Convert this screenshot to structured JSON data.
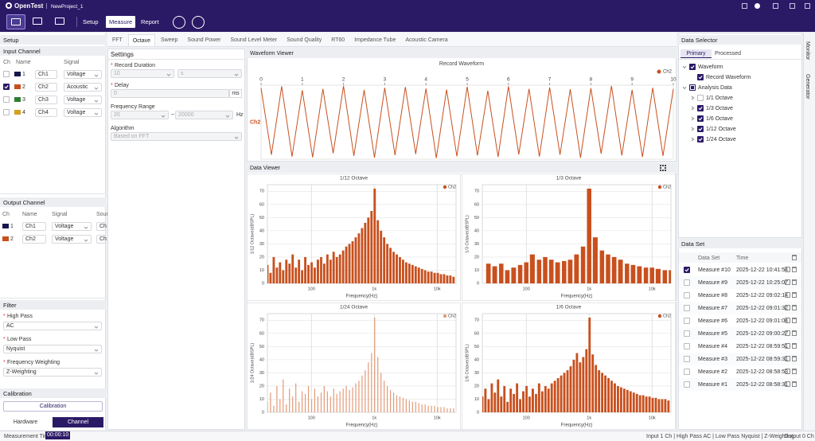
{
  "app": {
    "logo": "OpenTest",
    "project": "NewProject_1",
    "modes": [
      "Setup",
      "Measure",
      "Report"
    ],
    "active_mode": 1
  },
  "setup": {
    "title": "Setup",
    "input": {
      "title": "Input Channel",
      "columns": [
        "Ch",
        "Name",
        "Signal"
      ],
      "rows": [
        {
          "ch": "1",
          "color": "#17154f",
          "name": "Ch1",
          "signal": "Voltage",
          "checked": false
        },
        {
          "ch": "2",
          "color": "#c8501e",
          "name": "Ch2",
          "signal": "Acoustic",
          "checked": true
        },
        {
          "ch": "3",
          "color": "#2f7d32",
          "name": "Ch3",
          "signal": "Voltage",
          "checked": false
        },
        {
          "ch": "4",
          "color": "#d4a020",
          "name": "Ch4",
          "signal": "Voltage",
          "checked": false
        }
      ]
    },
    "output": {
      "title": "Output Channel",
      "columns": [
        "Ch",
        "Name",
        "Signal",
        "Sour"
      ],
      "rows": [
        {
          "ch": "1",
          "color": "#17154f",
          "name": "Ch1",
          "signal": "Voltage",
          "source": "Ch"
        },
        {
          "ch": "2",
          "color": "#c8501e",
          "name": "Ch2",
          "signal": "Voltage",
          "source": "Ch"
        }
      ]
    },
    "filter": {
      "title": "Filter",
      "fields": [
        {
          "required": "*",
          "label": "High Pass",
          "value": "AC"
        },
        {
          "required": "*",
          "label": "Low Pass",
          "value": "Nyquist"
        },
        {
          "required": "*",
          "label": "Frequency Weighting",
          "value": "Z-Weighting"
        }
      ]
    },
    "calibration": {
      "title": "Calibration",
      "button": "Calibration"
    },
    "tabs": [
      "Hardware",
      "Channel"
    ],
    "active_tab": 1
  },
  "analysis_tabs": {
    "items": [
      "FFT",
      "Octave",
      "Sweep",
      "Sound Power",
      "Sound Level Meter",
      "Sound Quality",
      "RT60",
      "Impedance Tube",
      "Acoustic Camera"
    ],
    "active": 1
  },
  "settings": {
    "title": "Settings",
    "record_duration": {
      "required": "*",
      "label": "Record Duration",
      "value": "10",
      "unit": "s"
    },
    "delay": {
      "required": "*",
      "label": "Delay",
      "value": "0",
      "unit": "ms"
    },
    "frequency_range": {
      "label": "Frequency Range",
      "from": "20",
      "separator": "~",
      "to": "20000",
      "unit": "Hz"
    },
    "algorithm": {
      "label": "Algorithm",
      "value": "Based on FFT"
    }
  },
  "waveform_viewer": {
    "title": "Waveform Viewer"
  },
  "data_viewer": {
    "title": "Data Viewer"
  },
  "data_selector": {
    "title": "Data Selector",
    "tabs": [
      "Primary",
      "Processed"
    ],
    "active_tab": 0,
    "tree": [
      {
        "label": "Waveform",
        "level": 0,
        "checked": true
      },
      {
        "label": "Record Waveform",
        "level": 1,
        "checked": true
      },
      {
        "label": "Analysis Data",
        "level": 0,
        "checked": "partial"
      },
      {
        "label": "1/1 Octave",
        "level": 1,
        "checked": false
      },
      {
        "label": "1/3 Octave",
        "level": 1,
        "checked": true
      },
      {
        "label": "1/6 Octave",
        "level": 1,
        "checked": true
      },
      {
        "label": "1/12 Octave",
        "level": 1,
        "checked": true
      },
      {
        "label": "1/24 Octave",
        "level": 1,
        "checked": true
      }
    ]
  },
  "data_set": {
    "title": "Data Set",
    "columns": [
      "Data Set",
      "Time"
    ],
    "rows": [
      {
        "name": "Measure #10",
        "time": "2025-12-22 10:41:54",
        "checked": true
      },
      {
        "name": "Measure #9",
        "time": "2025-12-22 10:25:07",
        "checked": false
      },
      {
        "name": "Measure #8",
        "time": "2025-12-22 09:02:14",
        "checked": false
      },
      {
        "name": "Measure #7",
        "time": "2025-12-22 09:01:32",
        "checked": false
      },
      {
        "name": "Measure #6",
        "time": "2025-12-22 09:01:04",
        "checked": false
      },
      {
        "name": "Measure #5",
        "time": "2025-12-22 09:00:27",
        "checked": false
      },
      {
        "name": "Measure #4",
        "time": "2025-12-22 08:59:51",
        "checked": false
      },
      {
        "name": "Measure #3",
        "time": "2025-12-22 08:59:31",
        "checked": false
      },
      {
        "name": "Measure #2",
        "time": "2025-12-22 08:58:53",
        "checked": false
      },
      {
        "name": "Measure #1",
        "time": "2025-12-22 08:58:31",
        "checked": false
      }
    ]
  },
  "side_tabs": [
    "Monitor",
    "Generator"
  ],
  "status": {
    "label": "Measurement Time",
    "time": "00:00:10",
    "items": [
      "Input  1 Ch | High Pass  AC | Low Pass  Nyquist | Z-Weighting",
      "Output  0 Ch"
    ]
  },
  "chart_data": [
    {
      "type": "line",
      "title": "Record Waveform",
      "xlim": [
        0,
        10
      ],
      "xticks": [
        0,
        1,
        2,
        3,
        4,
        5,
        6,
        7,
        8,
        9,
        10
      ],
      "ylim": [
        -1,
        1
      ],
      "legend": "upper right",
      "x": [
        0,
        0.25,
        0.5,
        0.75,
        1,
        1.25,
        1.5,
        1.75,
        2,
        2.25,
        2.5,
        2.75,
        3,
        3.25,
        3.5,
        3.75,
        4,
        4.25,
        4.5,
        4.75,
        5,
        5.25,
        5.5,
        5.75,
        6,
        6.25,
        6.5,
        6.75,
        7,
        7.25,
        7.5,
        7.75,
        8,
        8.25,
        8.5,
        8.75,
        9,
        9.25,
        9.5,
        9.75,
        10
      ],
      "series": [
        {
          "name": "Ch2",
          "color": "#c8501e",
          "values": [
            0.92,
            -0.88,
            0.97,
            -0.93,
            0.86,
            -0.95,
            0.9,
            -0.84,
            0.98,
            -0.91,
            0.87,
            -0.96,
            0.93,
            -0.89,
            0.95,
            -0.86,
            0.91,
            -0.97,
            0.88,
            -0.92,
            0.96,
            -0.9,
            0.85,
            -0.94,
            0.97,
            -0.87,
            0.9,
            -0.93,
            0.94,
            -0.88,
            0.89,
            -0.96,
            0.92,
            -0.85,
            0.98,
            -0.9,
            0.87,
            -0.94,
            0.93,
            -0.91,
            0.9
          ]
        }
      ]
    },
    {
      "type": "bar",
      "title": "1/12 Octave",
      "xlabel": "Frequency(Hz)",
      "ylabel": "1/12 Octave(dBSPL)",
      "xscale": "log",
      "xlim": [
        20,
        20000
      ],
      "xticks": [
        100,
        {
          "value": 1000,
          "label": "1k"
        },
        {
          "value": 10000,
          "label": "10k"
        }
      ],
      "ylim": [
        0,
        75
      ],
      "yticks": [
        0,
        10,
        20,
        30,
        40,
        50,
        60,
        70
      ],
      "grid": true,
      "legend": "upper right",
      "x": [
        20,
        22.4,
        25.2,
        28.3,
        31.7,
        35.6,
        40,
        44.9,
        50.4,
        56.6,
        63.5,
        71.3,
        80,
        89.8,
        101,
        113,
        127,
        143,
        160,
        180,
        202,
        226,
        254,
        285,
        320,
        359,
        403,
        453,
        508,
        570,
        640,
        718,
        806,
        905,
        1016,
        1140,
        1280,
        1437,
        1613,
        1810,
        2032,
        2281,
        2560,
        2874,
        3225,
        3620,
        4064,
        4561,
        5120,
        5747,
        6451,
        7241,
        8127,
        9123,
        10240,
        11494,
        12902,
        14482,
        16255,
        18246
      ],
      "series": [
        {
          "name": "Ch2",
          "color": "#c8501e",
          "values": [
            14,
            8,
            20,
            12,
            16,
            10,
            18,
            15,
            22,
            12,
            18,
            10,
            20,
            14,
            16,
            12,
            18,
            20,
            15,
            22,
            18,
            24,
            20,
            22,
            25,
            28,
            30,
            32,
            35,
            38,
            42,
            46,
            50,
            55,
            72,
            48,
            40,
            35,
            30,
            27,
            24,
            22,
            20,
            18,
            16,
            15,
            14,
            13,
            12,
            11,
            10,
            9,
            9,
            8,
            8,
            7,
            7,
            6,
            6,
            5
          ]
        }
      ]
    },
    {
      "type": "bar",
      "title": "1/3 Octave",
      "xlabel": "Frequency(Hz)",
      "ylabel": "1/3 Octave(dBSPL)",
      "xscale": "log",
      "xlim": [
        20,
        20000
      ],
      "xticks": [
        100,
        {
          "value": 1000,
          "label": "1k"
        },
        {
          "value": 10000,
          "label": "10k"
        }
      ],
      "ylim": [
        0,
        75
      ],
      "yticks": [
        0,
        10,
        20,
        30,
        40,
        50,
        60,
        70
      ],
      "grid": true,
      "legend": "upper right",
      "x": [
        25,
        31.5,
        40,
        50,
        63,
        80,
        100,
        125,
        160,
        200,
        250,
        315,
        400,
        500,
        630,
        800,
        1000,
        1250,
        1600,
        2000,
        2500,
        3150,
        4000,
        5000,
        6300,
        8000,
        10000,
        12500,
        16000,
        20000
      ],
      "series": [
        {
          "name": "Ch2",
          "color": "#c8501e",
          "values": [
            15,
            13,
            15,
            10,
            12,
            14,
            16,
            22,
            18,
            20,
            18,
            16,
            17,
            18,
            22,
            28,
            72,
            35,
            25,
            22,
            20,
            18,
            15,
            14,
            13,
            12,
            12,
            11,
            10,
            10
          ]
        }
      ]
    },
    {
      "type": "bar",
      "title": "1/24 Octave",
      "xlabel": "Frequency(Hz)",
      "ylabel": "1/24 Octave(dBSPL)",
      "xscale": "log",
      "xlim": [
        20,
        20000
      ],
      "xticks": [
        100,
        {
          "value": 1000,
          "label": "1k"
        },
        {
          "value": 10000,
          "label": "10k"
        }
      ],
      "ylim": [
        0,
        75
      ],
      "yticks": [
        0,
        10,
        20,
        30,
        40,
        50,
        60,
        70
      ],
      "grid": true,
      "legend": "upper right",
      "x": [
        20,
        22.4,
        25.2,
        28.3,
        31.7,
        35.6,
        40,
        44.9,
        50.4,
        56.6,
        63.5,
        71.3,
        80,
        89.8,
        101,
        113,
        127,
        143,
        160,
        180,
        202,
        226,
        254,
        285,
        320,
        359,
        403,
        453,
        508,
        570,
        640,
        718,
        806,
        905,
        1016,
        1140,
        1280,
        1437,
        1613,
        1810,
        2032,
        2281,
        2560,
        2874,
        3225,
        3620,
        4064,
        4561,
        5120,
        5747,
        6451,
        7241,
        8127,
        9123,
        10240,
        11494,
        12902,
        14482,
        16255,
        18246
      ],
      "series": [
        {
          "name": "Ch2",
          "color": "#e39a78",
          "values": [
            8,
            15,
            5,
            20,
            10,
            25,
            6,
            18,
            12,
            22,
            8,
            16,
            14,
            20,
            10,
            18,
            12,
            15,
            20,
            16,
            12,
            18,
            14,
            16,
            18,
            20,
            17,
            19,
            22,
            24,
            28,
            32,
            38,
            45,
            72,
            42,
            30,
            24,
            20,
            17,
            15,
            13,
            12,
            11,
            10,
            9,
            8,
            8,
            7,
            6,
            6,
            5,
            5,
            5,
            4,
            4,
            4,
            3,
            3,
            3
          ]
        }
      ]
    },
    {
      "type": "bar",
      "title": "1/6 Octave",
      "xlabel": "Frequency(Hz)",
      "ylabel": "1/6 Octave(dBSPL)",
      "xscale": "log",
      "xlim": [
        20,
        20000
      ],
      "xticks": [
        100,
        {
          "value": 1000,
          "label": "1k"
        },
        {
          "value": 10000,
          "label": "10k"
        }
      ],
      "ylim": [
        0,
        75
      ],
      "yticks": [
        0,
        10,
        20,
        30,
        40,
        50,
        60,
        70
      ],
      "grid": true,
      "legend": "upper right",
      "x": [
        20,
        22.4,
        25.2,
        28.3,
        31.7,
        35.6,
        40,
        44.9,
        50.4,
        56.6,
        63.5,
        71.3,
        80,
        89.8,
        101,
        113,
        127,
        143,
        160,
        180,
        202,
        226,
        254,
        285,
        320,
        359,
        403,
        453,
        508,
        570,
        640,
        718,
        806,
        905,
        1016,
        1140,
        1280,
        1437,
        1613,
        1810,
        2032,
        2281,
        2560,
        2874,
        3225,
        3620,
        4064,
        4561,
        5120,
        5747,
        6451,
        7241,
        8127,
        9123,
        10240,
        11494,
        12902,
        14482,
        16255,
        18246
      ],
      "series": [
        {
          "name": "Ch2",
          "color": "#c8501e",
          "values": [
            12,
            18,
            10,
            22,
            15,
            25,
            12,
            20,
            8,
            18,
            14,
            22,
            10,
            16,
            20,
            12,
            18,
            14,
            22,
            16,
            20,
            18,
            22,
            24,
            26,
            28,
            30,
            32,
            35,
            40,
            45,
            38,
            42,
            48,
            72,
            44,
            36,
            32,
            30,
            28,
            26,
            24,
            22,
            20,
            19,
            18,
            17,
            16,
            15,
            14,
            13,
            13,
            12,
            12,
            11,
            11,
            10,
            10,
            10,
            9
          ]
        }
      ]
    }
  ]
}
